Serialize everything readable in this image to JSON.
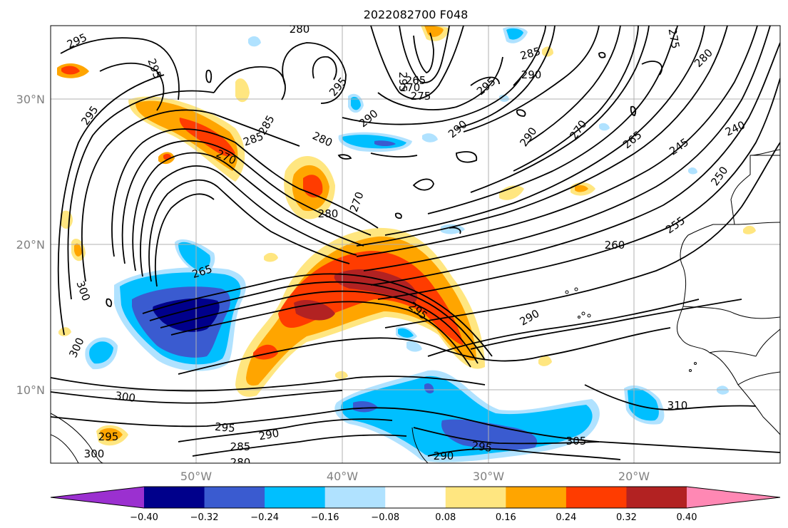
{
  "title": "2022082700 F048",
  "lat_ticks": [
    "30°N",
    "20°N",
    "10°N"
  ],
  "lon_ticks": [
    "50°W",
    "40°W",
    "30°W",
    "20°W"
  ],
  "colorbar": {
    "ticks": [
      "−0.40",
      "−0.32",
      "−0.24",
      "−0.16",
      "−0.08",
      "0.08",
      "0.16",
      "0.24",
      "0.32",
      "0.40"
    ],
    "colors": [
      "#9b30d0",
      "#00008b",
      "#3a5bd0",
      "#00bfff",
      "#b0e2ff",
      "#ffffff",
      "#ffe680",
      "#ffa500",
      "#ff3c00",
      "#b22222",
      "#ff88b4"
    ]
  },
  "contour_labels": [
    "295",
    "280",
    "295",
    "295",
    "295",
    "285",
    "290",
    "275",
    "285",
    "290",
    "295",
    "295",
    "265",
    "270",
    "275",
    "280",
    "285",
    "290",
    "290",
    "270",
    "265",
    "245",
    "240",
    "250",
    "270",
    "280",
    "270",
    "280",
    "255",
    "260",
    "265",
    "300",
    "300",
    "295",
    "290",
    "300",
    "295",
    "290",
    "285",
    "280",
    "300",
    "290",
    "295",
    "305",
    "310"
  ]
}
